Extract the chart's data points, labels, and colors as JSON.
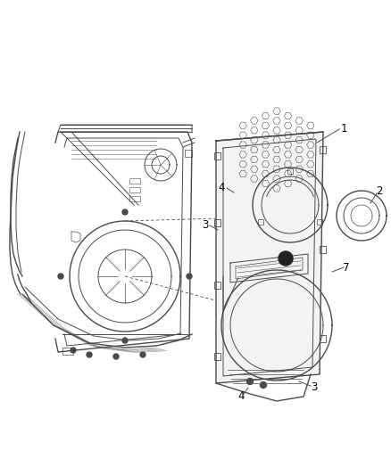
{
  "background_color": "#ffffff",
  "line_color": "#4a4a4a",
  "label_color": "#000000",
  "fig_width": 4.38,
  "fig_height": 5.33,
  "dpi": 100,
  "panel_fill": "#eeeeee",
  "door_fill": "#f5f5f5"
}
